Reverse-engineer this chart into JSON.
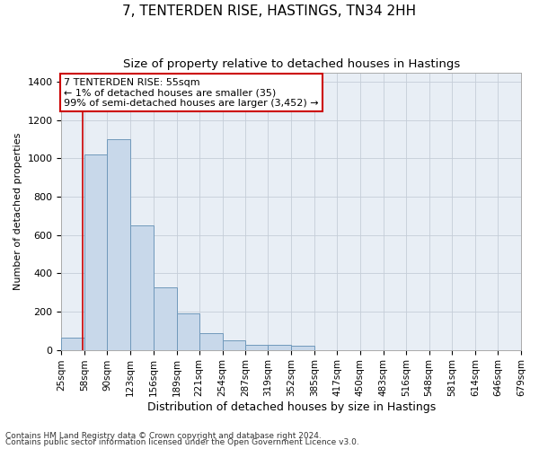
{
  "title": "7, TENTERDEN RISE, HASTINGS, TN34 2HH",
  "subtitle": "Size of property relative to detached houses in Hastings",
  "xlabel": "Distribution of detached houses by size in Hastings",
  "ylabel": "Number of detached properties",
  "footnote1": "Contains HM Land Registry data © Crown copyright and database right 2024.",
  "footnote2": "Contains public sector information licensed under the Open Government Licence v3.0.",
  "bar_color": "#c8d8ea",
  "bar_edge_color": "#7099bb",
  "annotation_line1": "7 TENTERDEN RISE: 55sqm",
  "annotation_line2": "← 1% of detached houses are smaller (35)",
  "annotation_line3": "99% of semi-detached houses are larger (3,452) →",
  "annotation_box_color": "#cc0000",
  "property_line_x": 55,
  "property_line_color": "#cc0000",
  "bin_edges": [
    25,
    58,
    90,
    123,
    156,
    189,
    221,
    254,
    287,
    319,
    352,
    385,
    417,
    450,
    483,
    516,
    548,
    581,
    614,
    646,
    679
  ],
  "bin_values": [
    65,
    1020,
    1100,
    650,
    325,
    190,
    88,
    48,
    28,
    25,
    20,
    0,
    0,
    0,
    0,
    0,
    0,
    0,
    0,
    0
  ],
  "ylim": [
    0,
    1450
  ],
  "background_color": "#e8eef5",
  "grid_color": "#c5cdd8",
  "title_fontsize": 11,
  "subtitle_fontsize": 9.5,
  "tick_label_fontsize": 7.5,
  "ylabel_fontsize": 8,
  "xlabel_fontsize": 9,
  "footnote_fontsize": 6.5
}
